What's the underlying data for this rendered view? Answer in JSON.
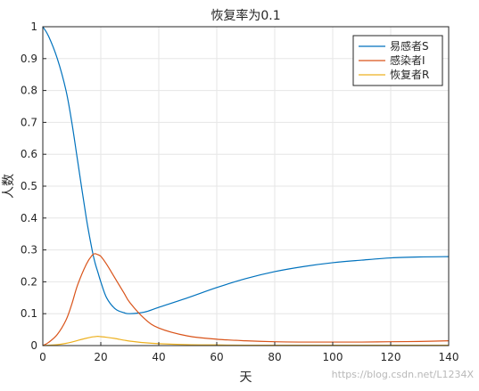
{
  "chart_data": {
    "type": "line",
    "title": "恢复率为0.1",
    "xlabel": "天",
    "ylabel": "人数",
    "xlim": [
      0,
      140
    ],
    "ylim": [
      0,
      1
    ],
    "x_ticks": [
      0,
      20,
      40,
      60,
      80,
      100,
      120,
      140
    ],
    "y_ticks": [
      0,
      0.1,
      0.2,
      0.3,
      0.4,
      0.5,
      0.6,
      0.7,
      0.8,
      0.9,
      1
    ],
    "grid": true,
    "legend_position": "top-right",
    "x": [
      0,
      2,
      5,
      8,
      10,
      12,
      15,
      17,
      18,
      19,
      20,
      22,
      25,
      28,
      30,
      35,
      40,
      50,
      60,
      70,
      80,
      90,
      100,
      110,
      120,
      130,
      140
    ],
    "series": [
      {
        "name": "易感者S",
        "color": "#0072BD",
        "values": [
          1.0,
          0.97,
          0.9,
          0.8,
          0.7,
          0.58,
          0.4,
          0.3,
          0.26,
          0.23,
          0.2,
          0.15,
          0.115,
          0.103,
          0.1,
          0.105,
          0.12,
          0.15,
          0.182,
          0.21,
          0.232,
          0.248,
          0.26,
          0.268,
          0.275,
          0.278,
          0.279
        ]
      },
      {
        "name": "感染者I",
        "color": "#D95319",
        "values": [
          0.0,
          0.01,
          0.035,
          0.08,
          0.13,
          0.19,
          0.255,
          0.283,
          0.288,
          0.285,
          0.28,
          0.255,
          0.21,
          0.165,
          0.135,
          0.085,
          0.055,
          0.03,
          0.02,
          0.015,
          0.012,
          0.011,
          0.011,
          0.011,
          0.012,
          0.013,
          0.015
        ]
      },
      {
        "name": "恢复者R",
        "color": "#EDB120",
        "values": [
          0.0,
          0.001,
          0.003,
          0.007,
          0.011,
          0.016,
          0.023,
          0.027,
          0.028,
          0.029,
          0.028,
          0.026,
          0.022,
          0.017,
          0.014,
          0.009,
          0.006,
          0.003,
          0.002,
          0.001,
          0.001,
          0.001,
          0.001,
          0.001,
          0.001,
          0.001,
          0.001
        ]
      }
    ]
  },
  "watermark": "https://blog.csdn.net/L1234X"
}
